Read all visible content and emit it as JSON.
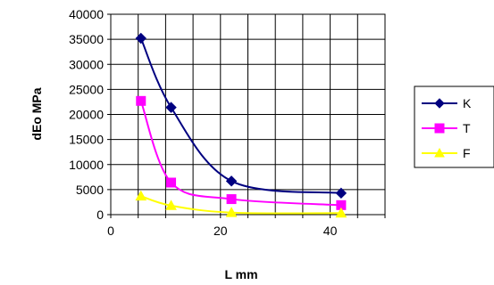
{
  "chart_data": {
    "type": "line",
    "title": "",
    "xlabel": "L mm",
    "ylabel": "dEo MPa",
    "xlim": [
      0,
      50
    ],
    "ylim": [
      0,
      40000
    ],
    "x_ticks": [
      0,
      20,
      40
    ],
    "y_ticks": [
      0,
      5000,
      10000,
      15000,
      20000,
      25000,
      30000,
      35000,
      40000
    ],
    "grid": true,
    "legend_position": "right",
    "series": [
      {
        "name": "K",
        "color": "#000080",
        "marker": "diamond",
        "x": [
          5.5,
          11,
          22,
          42
        ],
        "y": [
          35200,
          21400,
          6700,
          4300
        ]
      },
      {
        "name": "T",
        "color": "#FF00FF",
        "marker": "square",
        "x": [
          5.5,
          11,
          22,
          42
        ],
        "y": [
          22700,
          6400,
          3100,
          1900
        ]
      },
      {
        "name": "F",
        "color": "#FFFF00",
        "marker": "triangle",
        "x": [
          5.5,
          11,
          22,
          42
        ],
        "y": [
          3700,
          1800,
          400,
          300
        ]
      }
    ]
  }
}
